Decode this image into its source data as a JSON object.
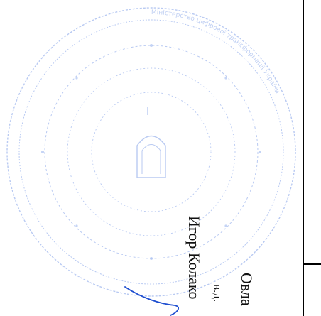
{
  "document": {
    "signature_block": {
      "line1": "Овла",
      "line2": "в.д.",
      "line3": "Игор Колако"
    },
    "stamp": {
      "text": "Міністерство цифрової трансформації України",
      "color": "#7f9fe8"
    },
    "signature_ink_color": "#1f4fd0"
  }
}
